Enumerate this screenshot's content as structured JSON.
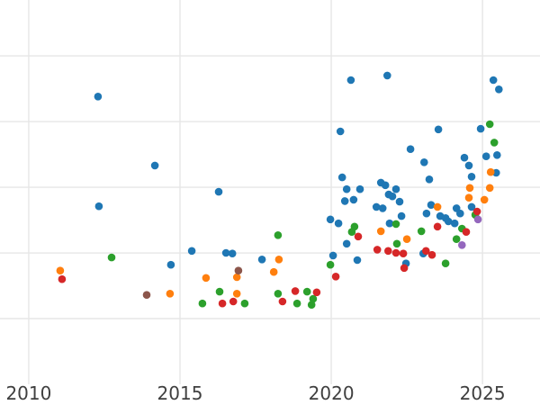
{
  "chart_data": {
    "type": "scatter",
    "title": "",
    "xlabel": "",
    "ylabel": "",
    "x_ticks": [
      2010,
      2015,
      2020,
      2025
    ],
    "x_tick_labels": [
      "2010",
      "2015",
      "2020",
      "2025"
    ],
    "x_range": [
      2009.05,
      2026.9
    ],
    "y_range": [
      0,
      5.85
    ],
    "y_gridlines": [
      1,
      2,
      3,
      4,
      5
    ],
    "y_axis_labeled": false,
    "grid": true,
    "legend": "none",
    "background": "#ffffff",
    "gridline_color": "#e6e6e6",
    "tick_label_color": "#3f3f3f",
    "marker_radius": 4.3,
    "series": [
      {
        "name": "blue",
        "color": "#1f77b4",
        "points": [
          [
            2012.29,
            4.38
          ],
          [
            2014.17,
            3.33
          ],
          [
            2012.32,
            2.71
          ],
          [
            2014.7,
            1.82
          ],
          [
            2016.28,
            2.93
          ],
          [
            2015.39,
            2.03
          ],
          [
            2016.52,
            2.0
          ],
          [
            2016.73,
            1.99
          ],
          [
            2017.71,
            1.9
          ],
          [
            2020.45,
            2.79
          ],
          [
            2020.74,
            2.81
          ],
          [
            2019.97,
            2.51
          ],
          [
            2020.24,
            2.45
          ],
          [
            2020.51,
            2.14
          ],
          [
            2020.06,
            1.96
          ],
          [
            2020.86,
            1.89
          ],
          [
            2020.65,
            4.63
          ],
          [
            2020.3,
            3.85
          ],
          [
            2020.36,
            3.15
          ],
          [
            2020.51,
            2.97
          ],
          [
            2020.95,
            2.97
          ],
          [
            2021.85,
            4.7
          ],
          [
            2021.64,
            3.07
          ],
          [
            2021.79,
            3.03
          ],
          [
            2022.14,
            2.97
          ],
          [
            2021.9,
            2.89
          ],
          [
            2022.02,
            2.86
          ],
          [
            2022.26,
            2.78
          ],
          [
            2021.49,
            2.7
          ],
          [
            2021.7,
            2.68
          ],
          [
            2022.32,
            2.56
          ],
          [
            2021.93,
            2.45
          ],
          [
            2022.47,
            1.84
          ],
          [
            2022.62,
            3.58
          ],
          [
            2023.07,
            3.38
          ],
          [
            2023.24,
            3.12
          ],
          [
            2023.3,
            2.73
          ],
          [
            2023.15,
            2.6
          ],
          [
            2023.6,
            2.56
          ],
          [
            2023.78,
            2.53
          ],
          [
            2023.04,
            1.99
          ],
          [
            2023.54,
            3.88
          ],
          [
            2023.87,
            2.48
          ],
          [
            2024.08,
            2.45
          ],
          [
            2024.14,
            2.68
          ],
          [
            2024.26,
            2.6
          ],
          [
            2024.64,
            2.7
          ],
          [
            2024.4,
            3.45
          ],
          [
            2024.55,
            3.33
          ],
          [
            2024.64,
            3.16
          ],
          [
            2024.94,
            3.89
          ],
          [
            2025.12,
            3.47
          ],
          [
            2025.48,
            3.49
          ],
          [
            2025.45,
            3.22
          ],
          [
            2025.36,
            4.63
          ],
          [
            2025.54,
            4.49
          ]
        ]
      },
      {
        "name": "orange",
        "color": "#ff7f0e",
        "points": [
          [
            2011.04,
            1.73
          ],
          [
            2014.67,
            1.38
          ],
          [
            2015.86,
            1.62
          ],
          [
            2016.88,
            1.63
          ],
          [
            2016.88,
            1.38
          ],
          [
            2018.1,
            1.71
          ],
          [
            2018.27,
            1.9
          ],
          [
            2021.64,
            2.33
          ],
          [
            2022.5,
            2.21
          ],
          [
            2023.51,
            2.7
          ],
          [
            2024.55,
            2.84
          ],
          [
            2024.58,
            2.99
          ],
          [
            2025.27,
            3.23
          ],
          [
            2025.24,
            2.99
          ],
          [
            2025.06,
            2.81
          ]
        ]
      },
      {
        "name": "green",
        "color": "#2ca02c",
        "points": [
          [
            2012.74,
            1.93
          ],
          [
            2016.31,
            1.41
          ],
          [
            2015.74,
            1.23
          ],
          [
            2017.14,
            1.23
          ],
          [
            2018.24,
            2.27
          ],
          [
            2018.24,
            1.38
          ],
          [
            2018.87,
            1.23
          ],
          [
            2019.2,
            1.41
          ],
          [
            2019.4,
            1.3
          ],
          [
            2019.35,
            1.21
          ],
          [
            2019.97,
            1.82
          ],
          [
            2020.77,
            2.4
          ],
          [
            2020.68,
            2.32
          ],
          [
            2022.14,
            2.44
          ],
          [
            2022.17,
            2.14
          ],
          [
            2022.98,
            2.33
          ],
          [
            2023.78,
            1.84
          ],
          [
            2024.76,
            2.58
          ],
          [
            2024.32,
            2.37
          ],
          [
            2024.14,
            2.21
          ],
          [
            2025.24,
            3.96
          ],
          [
            2025.39,
            3.68
          ]
        ]
      },
      {
        "name": "red",
        "color": "#d62728",
        "points": [
          [
            2011.1,
            1.6
          ],
          [
            2016.4,
            1.23
          ],
          [
            2016.76,
            1.26
          ],
          [
            2018.39,
            1.26
          ],
          [
            2018.81,
            1.42
          ],
          [
            2019.52,
            1.4
          ],
          [
            2020.15,
            1.64
          ],
          [
            2020.89,
            2.25
          ],
          [
            2021.52,
            2.05
          ],
          [
            2021.88,
            2.03
          ],
          [
            2022.14,
            2.0
          ],
          [
            2022.38,
            1.99
          ],
          [
            2022.41,
            1.77
          ],
          [
            2023.51,
            2.4
          ],
          [
            2023.13,
            2.03
          ],
          [
            2023.33,
            1.97
          ],
          [
            2024.46,
            2.32
          ],
          [
            2024.82,
            2.63
          ]
        ]
      },
      {
        "name": "purple",
        "color": "#9467bd",
        "points": [
          [
            2024.85,
            2.51
          ],
          [
            2024.32,
            2.12
          ]
        ]
      },
      {
        "name": "brown",
        "color": "#8c564b",
        "points": [
          [
            2013.9,
            1.36
          ],
          [
            2016.93,
            1.73
          ]
        ]
      }
    ]
  }
}
